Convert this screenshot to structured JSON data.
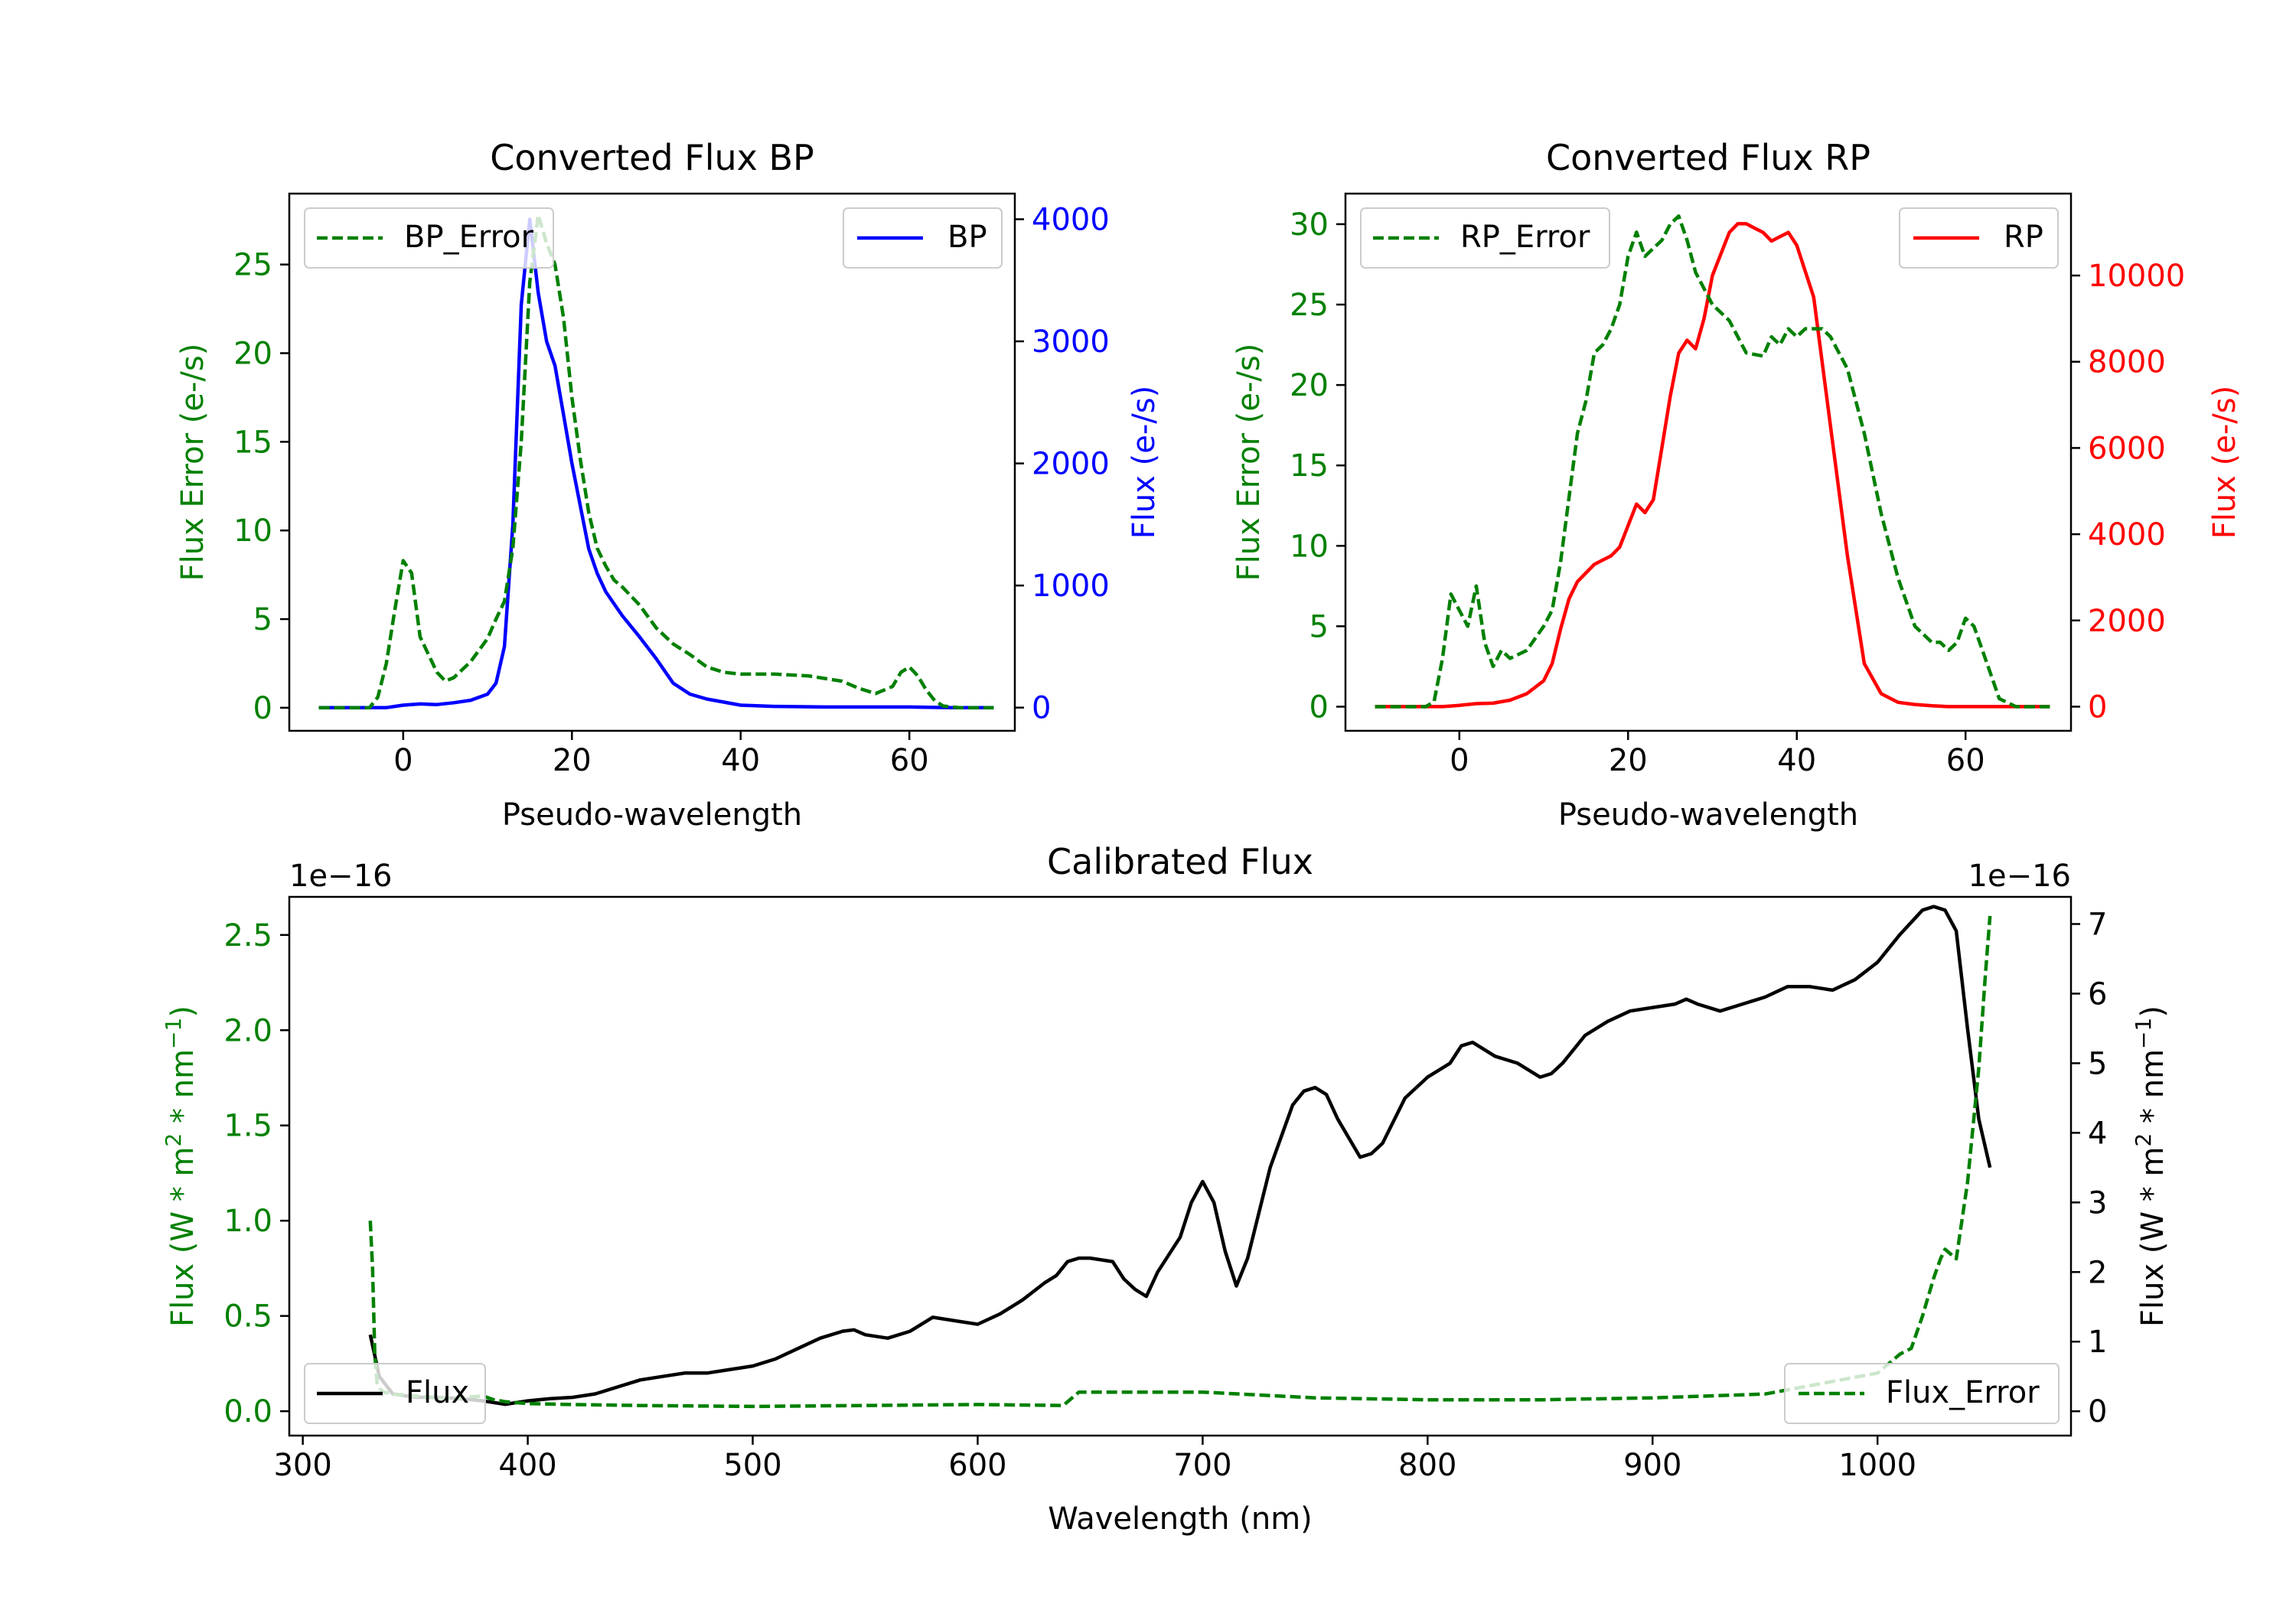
{
  "chart_data": [
    {
      "id": "bp",
      "type": "line",
      "title": "Converted Flux BP",
      "xlabel": "Pseudo-wavelength",
      "ylabel_left": "Flux Error (e-/s)",
      "ylabel_right": "Flux (e-/s)",
      "xlim": [
        -13.5,
        72.5
      ],
      "ylim_left": [
        -1.3,
        29.0
      ],
      "ylim_right": [
        -190,
        4210
      ],
      "xticks": [
        0,
        20,
        40,
        60
      ],
      "yticks_left": [
        0,
        5,
        10,
        15,
        20,
        25
      ],
      "yticks_right": [
        0,
        1000,
        2000,
        3000,
        4000
      ],
      "left_color": "#008000",
      "right_color": "#0000ff",
      "series_left": {
        "name": "BP_Error",
        "style": "dashed",
        "color": "#008000",
        "x": [
          -10,
          -6,
          -4,
          -3,
          -2,
          -1,
          0,
          1,
          2,
          3,
          4,
          5,
          6,
          8,
          10,
          11,
          12,
          13,
          14,
          15,
          16,
          17,
          18,
          19,
          20,
          21,
          22,
          23,
          24,
          25,
          26,
          27,
          28,
          30,
          32,
          34,
          36,
          38,
          40,
          44,
          48,
          52,
          54,
          56,
          58,
          59,
          60,
          61,
          62,
          63,
          64,
          66,
          68,
          70
        ],
        "values": [
          0,
          0,
          0,
          0.6,
          2.5,
          5.5,
          8.3,
          7.6,
          4,
          3,
          2,
          1.5,
          1.7,
          2.6,
          3.9,
          5,
          6,
          9,
          15,
          24,
          27.8,
          26.2,
          25,
          22,
          17.5,
          14,
          11,
          9,
          8,
          7.2,
          6.8,
          6.3,
          5.8,
          4.5,
          3.6,
          3.0,
          2.3,
          2.0,
          1.9,
          1.9,
          1.8,
          1.5,
          1.1,
          0.8,
          1.2,
          2.0,
          2.3,
          1.8,
          1.0,
          0.4,
          0.1,
          0,
          0,
          0
        ]
      },
      "series_right": {
        "name": "BP",
        "style": "solid",
        "color": "#0000ff",
        "x": [
          -10,
          -4,
          -2,
          0,
          2,
          4,
          6,
          8,
          10,
          11,
          12,
          13,
          14,
          15,
          16,
          17,
          18,
          19,
          20,
          21,
          22,
          23,
          24,
          25,
          26,
          28,
          30,
          32,
          34,
          36,
          40,
          44,
          50,
          56,
          60,
          65,
          70
        ],
        "values": [
          0,
          0,
          0,
          20,
          30,
          25,
          40,
          60,
          110,
          200,
          500,
          1500,
          3300,
          4000,
          3400,
          3000,
          2800,
          2400,
          2000,
          1650,
          1300,
          1100,
          950,
          850,
          750,
          580,
          400,
          200,
          110,
          70,
          20,
          10,
          5,
          5,
          5,
          0,
          0
        ]
      },
      "legend_left": "upper left",
      "legend_right": "upper right"
    },
    {
      "id": "rp",
      "type": "line",
      "title": "Converted Flux RP",
      "xlabel": "Pseudo-wavelength",
      "ylabel_left": "Flux Error (e-/s)",
      "ylabel_right": "Flux (e-/s)",
      "xlim": [
        -13.5,
        72.5
      ],
      "ylim_left": [
        -1.5,
        31.9
      ],
      "ylim_right": [
        -560,
        11900
      ],
      "xticks": [
        0,
        20,
        40,
        60
      ],
      "yticks_left": [
        0,
        5,
        10,
        15,
        20,
        25,
        30
      ],
      "yticks_right": [
        0,
        2000,
        4000,
        6000,
        8000,
        10000
      ],
      "left_color": "#008000",
      "right_color": "#ff0000",
      "series_left": {
        "name": "RP_Error",
        "style": "dashed",
        "color": "#008000",
        "x": [
          -10,
          -4,
          -3,
          -2,
          -1,
          0,
          1,
          2,
          3,
          4,
          5,
          6,
          8,
          10,
          11,
          12,
          13,
          14,
          15,
          16,
          17,
          18,
          19,
          20,
          21,
          22,
          23,
          24,
          25,
          26,
          27,
          28,
          29,
          30,
          32,
          34,
          36,
          37,
          38,
          39,
          40,
          41,
          42,
          43,
          44,
          46,
          48,
          50,
          52,
          54,
          56,
          57,
          58,
          59,
          60,
          61,
          62,
          63,
          64,
          66,
          70
        ],
        "values": [
          0,
          0,
          0.3,
          3,
          7,
          6,
          5,
          7.5,
          4,
          2.5,
          3.5,
          3,
          3.5,
          5,
          6,
          9,
          13,
          17,
          19,
          22,
          22.5,
          23.5,
          25,
          28,
          29.5,
          28,
          28.5,
          29,
          30,
          30.5,
          29,
          27,
          26,
          25,
          24,
          22,
          21.8,
          23,
          22.5,
          23.5,
          23,
          23.5,
          23.5,
          23.5,
          23,
          21,
          17,
          12,
          8,
          5,
          4,
          4,
          3.5,
          4,
          5.5,
          5.0,
          3.5,
          2,
          0.5,
          0,
          0
        ]
      },
      "series_right": {
        "name": "RP",
        "style": "solid",
        "color": "#ff0000",
        "x": [
          -10,
          -4,
          -2,
          0,
          2,
          4,
          6,
          8,
          10,
          11,
          12,
          13,
          14,
          16,
          18,
          19,
          20,
          21,
          22,
          23,
          24,
          25,
          26,
          27,
          28,
          29,
          30,
          31,
          32,
          33,
          34,
          35,
          36,
          37,
          38,
          39,
          40,
          42,
          44,
          46,
          48,
          50,
          52,
          54,
          56,
          58,
          60,
          62,
          64,
          70
        ],
        "values": [
          0,
          0,
          0,
          30,
          70,
          80,
          150,
          300,
          600,
          1000,
          1800,
          2500,
          2900,
          3300,
          3500,
          3700,
          4200,
          4700,
          4500,
          4800,
          6000,
          7200,
          8200,
          8500,
          8300,
          9000,
          10000,
          10500,
          11000,
          11200,
          11200,
          11100,
          11000,
          10800,
          10900,
          11000,
          10700,
          9500,
          6500,
          3500,
          1000,
          300,
          100,
          50,
          20,
          0,
          0,
          0,
          0,
          0
        ]
      },
      "legend_left": "upper left",
      "legend_right": "upper right"
    },
    {
      "id": "cal",
      "type": "line",
      "title": "Calibrated Flux",
      "xlabel": "Wavelength (nm)",
      "ylabel_left": "Flux (W * m$^2$ * nm$^{-1}$)",
      "ylabel_right": "Flux (W * m$^2$ * nm$^{-1}$)",
      "ylabel_left_parts": {
        "a": "Flux (W * m",
        "sup1": "2",
        "b": " * nm",
        "sup2": "−1",
        "c": ")"
      },
      "offset_left": "1e−16",
      "offset_right": "1e−16",
      "xlim": [
        294,
        1086
      ],
      "ylim_left": [
        -0.128,
        2.7
      ],
      "ylim_right": [
        -0.3495,
        7.39
      ],
      "xticks": [
        300,
        400,
        500,
        600,
        700,
        800,
        900,
        1000
      ],
      "yticks_left": [
        0.0,
        0.5,
        1.0,
        1.5,
        2.0,
        2.5
      ],
      "yticks_left_labels": [
        "0.0",
        "0.5",
        "1.0",
        "1.5",
        "2.0",
        "2.5"
      ],
      "yticks_right": [
        0,
        1,
        2,
        3,
        4,
        5,
        6,
        7
      ],
      "left_color": "#008000",
      "right_color": "#000000",
      "series_left": {
        "name": "Flux_Error",
        "style": "dashed",
        "color": "#008000",
        "x": [
          330,
          331,
          332,
          333,
          334,
          336,
          340,
          350,
          360,
          370,
          380,
          385,
          390,
          400,
          420,
          450,
          500,
          550,
          600,
          638,
          640,
          645,
          650,
          700,
          750,
          800,
          850,
          900,
          950,
          1000,
          1010,
          1015,
          1020,
          1025,
          1028,
          1030,
          1035,
          1040,
          1045,
          1048,
          1050
        ],
        "values": [
          1.0,
          0.75,
          0.3,
          0.15,
          0.12,
          0.1,
          0.09,
          0.08,
          0.07,
          0.07,
          0.08,
          0.06,
          0.05,
          0.04,
          0.035,
          0.03,
          0.025,
          0.03,
          0.035,
          0.03,
          0.05,
          0.1,
          0.1,
          0.1,
          0.07,
          0.06,
          0.06,
          0.07,
          0.09,
          0.2,
          0.3,
          0.33,
          0.5,
          0.7,
          0.8,
          0.85,
          0.8,
          1.2,
          1.8,
          2.3,
          2.6
        ]
      },
      "series_right": {
        "name": "Flux",
        "style": "solid",
        "color": "#000000",
        "x": [
          330,
          334,
          340,
          350,
          360,
          370,
          380,
          390,
          400,
          410,
          420,
          430,
          440,
          450,
          460,
          470,
          480,
          490,
          500,
          510,
          520,
          530,
          540,
          545,
          550,
          560,
          570,
          580,
          590,
          600,
          610,
          620,
          630,
          635,
          640,
          645,
          650,
          660,
          665,
          670,
          675,
          680,
          690,
          695,
          700,
          705,
          710,
          715,
          720,
          730,
          740,
          745,
          750,
          755,
          760,
          770,
          775,
          780,
          790,
          800,
          810,
          815,
          820,
          830,
          840,
          850,
          855,
          860,
          870,
          880,
          890,
          900,
          910,
          915,
          920,
          930,
          940,
          950,
          960,
          970,
          980,
          990,
          1000,
          1010,
          1020,
          1025,
          1030,
          1035,
          1040,
          1045,
          1050
        ],
        "values": [
          1.1,
          0.5,
          0.25,
          0.2,
          0.2,
          0.18,
          0.15,
          0.1,
          0.15,
          0.18,
          0.2,
          0.25,
          0.35,
          0.45,
          0.5,
          0.55,
          0.55,
          0.6,
          0.65,
          0.75,
          0.9,
          1.05,
          1.15,
          1.17,
          1.1,
          1.05,
          1.15,
          1.35,
          1.3,
          1.25,
          1.4,
          1.6,
          1.85,
          1.95,
          2.15,
          2.2,
          2.2,
          2.15,
          1.9,
          1.75,
          1.65,
          2.0,
          2.5,
          3.0,
          3.3,
          3.0,
          2.3,
          1.8,
          2.2,
          3.5,
          4.4,
          4.6,
          4.65,
          4.55,
          4.2,
          3.65,
          3.7,
          3.85,
          4.5,
          4.8,
          5.0,
          5.25,
          5.3,
          5.1,
          5.0,
          4.8,
          4.85,
          5.0,
          5.4,
          5.6,
          5.75,
          5.8,
          5.85,
          5.92,
          5.85,
          5.75,
          5.85,
          5.95,
          6.1,
          6.1,
          6.05,
          6.2,
          6.45,
          6.85,
          7.2,
          7.25,
          7.2,
          6.9,
          5.5,
          4.2,
          3.5
        ]
      },
      "legend_left": "lower left",
      "legend_right": "lower right"
    }
  ]
}
